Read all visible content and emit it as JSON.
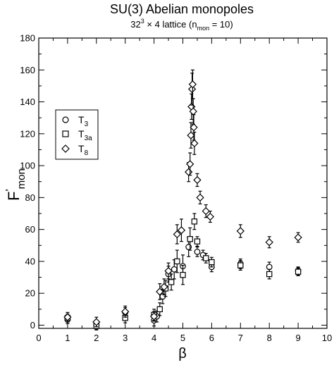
{
  "chart_data": {
    "type": "scatter",
    "title": "SU(3) Abelian monopoles",
    "subtitle": {
      "lattice_base": "32",
      "lattice_exp": "3",
      "lattice_rest": " × 4 lattice  (n",
      "n_sub": "mon",
      "n_value": " = 10)"
    },
    "xlabel": "β",
    "ylabel": {
      "main": "F",
      "prime": "'",
      "sub": "mon"
    },
    "xlim": [
      0,
      10
    ],
    "ylim": [
      -2,
      180
    ],
    "x_ticks": [
      "0",
      "1",
      "2",
      "3",
      "4",
      "5",
      "6",
      "7",
      "8",
      "9",
      "10"
    ],
    "y_ticks": [
      "0",
      "20",
      "40",
      "60",
      "80",
      "100",
      "120",
      "140",
      "160",
      "180"
    ],
    "legend": {
      "placement": "upper-left",
      "entries": [
        {
          "marker": "circle",
          "label": "T",
          "sub": "3"
        },
        {
          "marker": "square",
          "label": "T",
          "sub": "3a"
        },
        {
          "marker": "diamond",
          "label": "T",
          "sub": "8"
        }
      ]
    },
    "series": [
      {
        "name": "T3",
        "marker": "circle",
        "points": [
          {
            "x": 1.0,
            "y": 3.5,
            "err": 2.5
          },
          {
            "x": 2.0,
            "y": 0.0,
            "err": 2.5
          },
          {
            "x": 3.0,
            "y": 8.0,
            "err": 3.0
          },
          {
            "x": 4.0,
            "y": 3.0,
            "err": 3.5
          },
          {
            "x": 4.1,
            "y": 5.5,
            "err": 3.5
          },
          {
            "x": 4.3,
            "y": 18.0,
            "err": 4.5
          },
          {
            "x": 4.5,
            "y": 32.0,
            "err": 5.0
          },
          {
            "x": 4.7,
            "y": 35.0,
            "err": 6.0
          },
          {
            "x": 5.0,
            "y": 37.0,
            "err": 7.0
          },
          {
            "x": 5.2,
            "y": 49.0,
            "err": 6.0
          },
          {
            "x": 5.5,
            "y": 46.0,
            "err": 3.0
          },
          {
            "x": 5.7,
            "y": 44.0,
            "err": 3.0
          },
          {
            "x": 6.0,
            "y": 36.5,
            "err": 3.0
          },
          {
            "x": 7.0,
            "y": 38.5,
            "err": 3.0
          },
          {
            "x": 8.0,
            "y": 36.5,
            "err": 3.0
          },
          {
            "x": 9.0,
            "y": 34.0,
            "err": 2.5
          }
        ]
      },
      {
        "name": "T3a",
        "marker": "square",
        "points": [
          {
            "x": 1.0,
            "y": 4.5,
            "err": 2.5
          },
          {
            "x": 2.0,
            "y": -0.5,
            "err": 2.5
          },
          {
            "x": 3.0,
            "y": 4.5,
            "err": 3.0
          },
          {
            "x": 4.0,
            "y": 6.5,
            "err": 3.5
          },
          {
            "x": 4.2,
            "y": 10.0,
            "err": 4.0
          },
          {
            "x": 4.4,
            "y": 23.0,
            "err": 5.0
          },
          {
            "x": 4.6,
            "y": 27.0,
            "err": 5.0
          },
          {
            "x": 4.8,
            "y": 40.0,
            "err": 7.0
          },
          {
            "x": 5.0,
            "y": 31.5,
            "err": 6.0
          },
          {
            "x": 5.25,
            "y": 54.0,
            "err": 7.0
          },
          {
            "x": 5.4,
            "y": 65.0,
            "err": 5.0
          },
          {
            "x": 5.5,
            "y": 52.5,
            "err": 3.0
          },
          {
            "x": 5.8,
            "y": 42.0,
            "err": 3.0
          },
          {
            "x": 6.0,
            "y": 39.5,
            "err": 3.0
          },
          {
            "x": 7.0,
            "y": 37.5,
            "err": 3.0
          },
          {
            "x": 8.0,
            "y": 32.0,
            "err": 3.0
          },
          {
            "x": 9.0,
            "y": 33.5,
            "err": 2.5
          }
        ]
      },
      {
        "name": "T8",
        "marker": "diamond",
        "points": [
          {
            "x": 1.0,
            "y": 5.0,
            "err": 3.0
          },
          {
            "x": 2.0,
            "y": 2.0,
            "err": 3.0
          },
          {
            "x": 3.0,
            "y": 8.5,
            "err": 3.5
          },
          {
            "x": 4.0,
            "y": 5.5,
            "err": 3.0
          },
          {
            "x": 4.2,
            "y": 21.0,
            "err": 5.0
          },
          {
            "x": 4.35,
            "y": 24.0,
            "err": 5.0
          },
          {
            "x": 4.5,
            "y": 34.0,
            "err": 5.0
          },
          {
            "x": 4.8,
            "y": 57.0,
            "err": 6.0
          },
          {
            "x": 4.95,
            "y": 59.5,
            "err": 7.0
          },
          {
            "x": 5.2,
            "y": 96.0,
            "err": 6.0
          },
          {
            "x": 5.25,
            "y": 101.0,
            "err": 7.0
          },
          {
            "x": 5.28,
            "y": 119.0,
            "err": 8.0
          },
          {
            "x": 5.3,
            "y": 137.0,
            "err": 8.0
          },
          {
            "x": 5.32,
            "y": 148.0,
            "err": 10.0
          },
          {
            "x": 5.34,
            "y": 151.0,
            "err": 9.0
          },
          {
            "x": 5.36,
            "y": 134.0,
            "err": 8.0
          },
          {
            "x": 5.38,
            "y": 124.0,
            "err": 8.0
          },
          {
            "x": 5.4,
            "y": 114.0,
            "err": 7.0
          },
          {
            "x": 5.5,
            "y": 91.0,
            "err": 4.0
          },
          {
            "x": 5.6,
            "y": 80.0,
            "err": 4.0
          },
          {
            "x": 5.8,
            "y": 71.5,
            "err": 4.0
          },
          {
            "x": 5.95,
            "y": 68.0,
            "err": 3.5
          },
          {
            "x": 7.0,
            "y": 59.0,
            "err": 4.0
          },
          {
            "x": 8.0,
            "y": 52.0,
            "err": 3.5
          },
          {
            "x": 9.0,
            "y": 55.0,
            "err": 3.0
          }
        ]
      }
    ]
  }
}
